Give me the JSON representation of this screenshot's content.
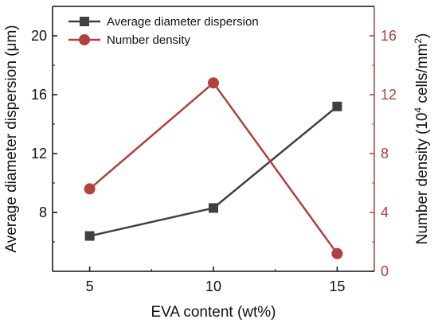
{
  "chart_data": {
    "type": "line",
    "x": [
      5,
      10,
      15
    ],
    "xlim": [
      3.5,
      16.5
    ],
    "xticks": [
      5,
      10,
      15
    ],
    "xlabel": "EVA content (wt%)",
    "ylabel_left": "Average diameter dispersion (μm)",
    "ylabel_right": {
      "pre": "Number density (10",
      "sup1": "4",
      "mid": " cells/mm",
      "sup2": "2",
      "post": ")"
    },
    "ylim_left": [
      4,
      22
    ],
    "ylim_right": [
      0,
      18
    ],
    "yticks_left": [
      8,
      12,
      16,
      20
    ],
    "yticks_right": [
      0,
      4,
      8,
      12,
      16
    ],
    "grid": false,
    "legend_position": "top-left",
    "series": [
      {
        "name": "Average diameter dispersion",
        "axis": "left",
        "marker": "square",
        "color": "#404040",
        "values": [
          6.4,
          8.3,
          15.2
        ]
      },
      {
        "name": "Number density",
        "axis": "right",
        "marker": "circle",
        "color": "#b0413e",
        "values": [
          5.6,
          12.8,
          1.2
        ]
      }
    ],
    "colors": {
      "left_axis": "#111111",
      "right_axis": "#b0413e"
    }
  }
}
